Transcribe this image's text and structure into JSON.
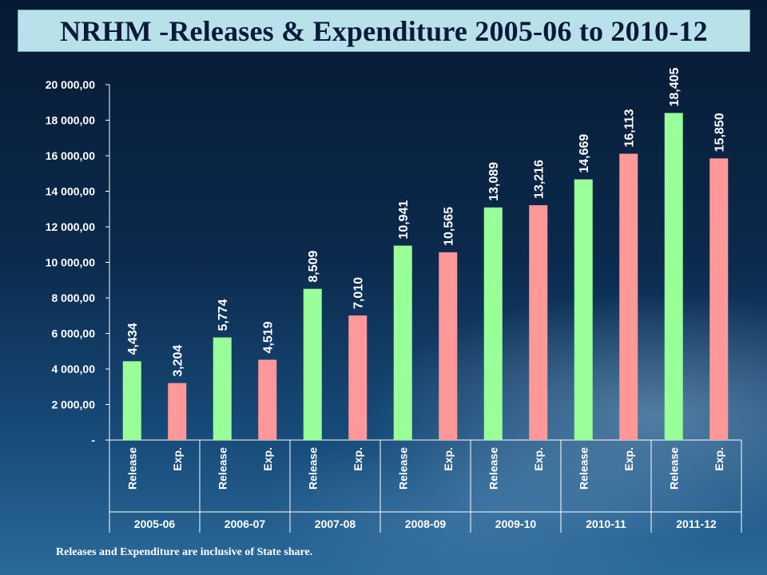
{
  "chart_data": {
    "type": "bar",
    "title": "NRHM -Releases & Expenditure 2005-06 to 2010-12",
    "groups": [
      "2005-06",
      "2006-07",
      "2007-08",
      "2008-09",
      "2009-10",
      "2010-11",
      "2011-12"
    ],
    "categories": [
      "Release",
      "Exp.",
      "Release",
      "Exp.",
      "Release",
      "Exp.",
      "Release",
      "Exp.",
      "Release",
      "Exp.",
      "Release",
      "Exp.",
      "Release",
      "Exp."
    ],
    "values": [
      4434,
      3204,
      5774,
      4519,
      8509,
      7010,
      10941,
      10565,
      13089,
      13216,
      14669,
      16113,
      18405,
      15850
    ],
    "data_labels": [
      "4,434",
      "3,204",
      "5,774",
      "4,519",
      "8,509",
      "7,010",
      "10,941",
      "10,565",
      "13,089",
      "13,216",
      "14,669",
      "16,113",
      "18,405",
      "15,850"
    ],
    "ylim": [
      0,
      20000
    ],
    "yticks": [
      0,
      2000,
      4000,
      6000,
      8000,
      10000,
      12000,
      14000,
      16000,
      18000,
      20000
    ],
    "ytick_labels": [
      "-",
      "2 000,00",
      "4 000,00",
      "6 000,00",
      "8 000,00",
      "10 000,00",
      "12 000,00",
      "14 000,00",
      "16 000,00",
      "18 000,00",
      "20 000,00"
    ],
    "colors": {
      "Release": "#99ff99",
      "Exp.": "#ff9999"
    },
    "grid": false,
    "legend": "none"
  },
  "footnote": "Releases and Expenditure are inclusive of State share."
}
